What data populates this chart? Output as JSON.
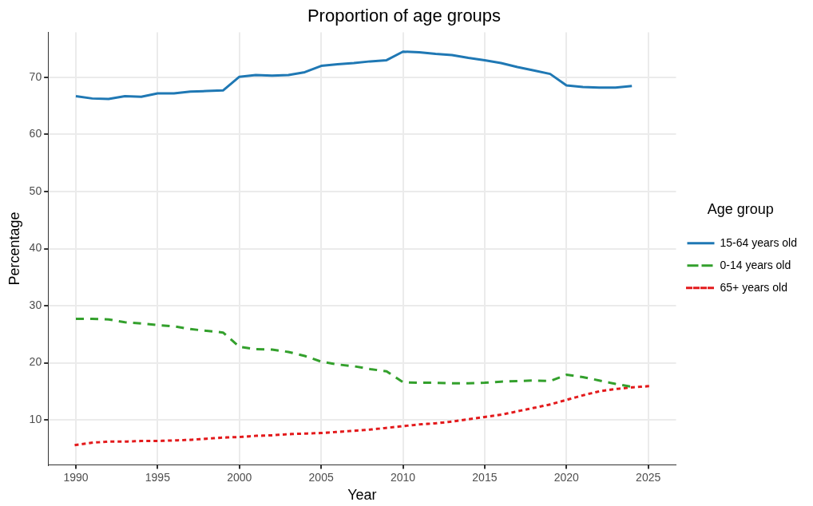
{
  "chart_data": {
    "type": "line",
    "title": "Proportion of age groups",
    "xlabel": "Year",
    "ylabel": "Percentage",
    "legend_title": "Age group",
    "legend": "right",
    "grid": true,
    "xlim": [
      1988.3,
      2026.7
    ],
    "xticks": [
      1990,
      1995,
      2000,
      2005,
      2010,
      2015,
      2020,
      2025
    ],
    "ylim": [
      2.1,
      77.9
    ],
    "yticks": [
      10,
      20,
      30,
      40,
      50,
      60,
      70
    ],
    "x": [
      1990,
      1991,
      1992,
      1993,
      1994,
      1995,
      1996,
      1997,
      1998,
      1999,
      2000,
      2001,
      2002,
      2003,
      2004,
      2005,
      2006,
      2007,
      2008,
      2009,
      2010,
      2011,
      2012,
      2013,
      2014,
      2015,
      2016,
      2017,
      2018,
      2019,
      2020,
      2021,
      2022,
      2023,
      2024,
      2025
    ],
    "series": [
      {
        "name": "15-64 years old",
        "color": "#1f78b4",
        "line_style": "solid",
        "values": [
          66.7,
          66.3,
          66.2,
          66.7,
          66.6,
          67.2,
          67.2,
          67.5,
          67.6,
          67.7,
          70.1,
          70.4,
          70.3,
          70.4,
          70.9,
          72.0,
          72.3,
          72.5,
          72.8,
          73.0,
          74.5,
          74.4,
          74.1,
          73.9,
          73.4,
          73.0,
          72.5,
          71.8,
          71.2,
          70.6,
          68.6,
          68.3,
          68.2,
          68.2,
          68.5,
          null
        ]
      },
      {
        "name": "0-14 years old",
        "color": "#33a02c",
        "line_style": "dashed",
        "values": [
          27.7,
          27.7,
          27.6,
          27.1,
          26.9,
          26.6,
          26.4,
          25.9,
          25.6,
          25.3,
          22.8,
          22.4,
          22.3,
          21.9,
          21.2,
          20.2,
          19.7,
          19.4,
          18.9,
          18.5,
          16.6,
          16.5,
          16.5,
          16.4,
          16.4,
          16.5,
          16.7,
          16.8,
          16.9,
          16.8,
          17.9,
          17.5,
          16.9,
          16.3,
          15.8,
          null
        ]
      },
      {
        "name": "65+ years old",
        "color": "#e31a1c",
        "line_style": "dotted",
        "values": [
          5.6,
          6.0,
          6.2,
          6.2,
          6.3,
          6.3,
          6.4,
          6.5,
          6.7,
          6.9,
          7.0,
          7.2,
          7.3,
          7.5,
          7.6,
          7.7,
          7.9,
          8.1,
          8.3,
          8.6,
          8.9,
          9.2,
          9.4,
          9.7,
          10.1,
          10.5,
          10.9,
          11.5,
          12.1,
          12.7,
          13.5,
          14.3,
          15.0,
          15.4,
          15.7,
          15.9
        ]
      }
    ]
  }
}
